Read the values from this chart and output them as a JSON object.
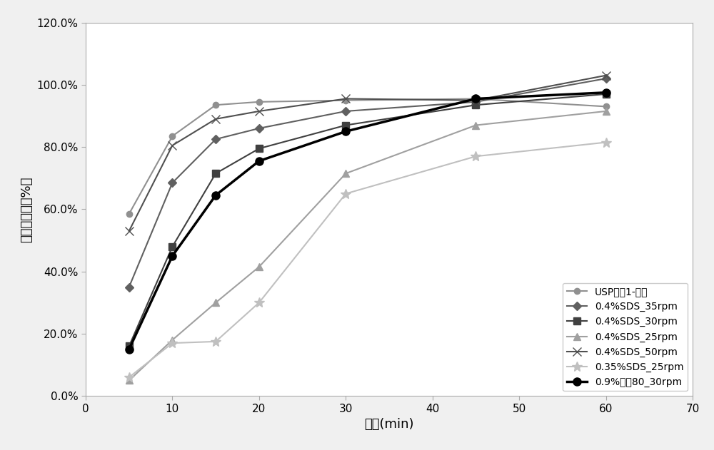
{
  "series": [
    {
      "label": "USP方法1-原研",
      "x": [
        5,
        10,
        15,
        20,
        30,
        45,
        60
      ],
      "y": [
        58.5,
        83.5,
        93.5,
        94.5,
        95.0,
        95.5,
        93.0
      ],
      "color": "#909090",
      "marker": "o",
      "markersize": 6,
      "linewidth": 1.5,
      "linestyle": "-",
      "markerfacecolor": "#909090"
    },
    {
      "label": "0.4%SDS_35rpm",
      "x": [
        5,
        10,
        15,
        20,
        30,
        45,
        60
      ],
      "y": [
        35.0,
        68.5,
        82.5,
        86.0,
        91.5,
        94.5,
        102.0
      ],
      "color": "#606060",
      "marker": "D",
      "markersize": 6,
      "linewidth": 1.5,
      "linestyle": "-",
      "markerfacecolor": "#606060"
    },
    {
      "label": "0.4%SDS_30rpm",
      "x": [
        5,
        10,
        15,
        20,
        30,
        45,
        60
      ],
      "y": [
        16.0,
        48.0,
        71.5,
        79.5,
        87.0,
        93.5,
        97.0
      ],
      "color": "#404040",
      "marker": "s",
      "markersize": 7,
      "linewidth": 1.5,
      "linestyle": "-",
      "markerfacecolor": "#404040"
    },
    {
      "label": "0.4%SDS_25rpm",
      "x": [
        5,
        10,
        15,
        20,
        30,
        45,
        60
      ],
      "y": [
        5.0,
        18.0,
        30.0,
        41.5,
        71.5,
        87.0,
        91.5
      ],
      "color": "#a0a0a0",
      "marker": "^",
      "markersize": 7,
      "linewidth": 1.5,
      "linestyle": "-",
      "markerfacecolor": "#a0a0a0"
    },
    {
      "label": "0.4%SDS_50rpm",
      "x": [
        5,
        10,
        15,
        20,
        30,
        45,
        60
      ],
      "y": [
        53.0,
        80.5,
        89.0,
        91.5,
        95.5,
        95.0,
        103.0
      ],
      "color": "#505050",
      "marker": "x",
      "markersize": 8,
      "linewidth": 1.5,
      "linestyle": "-",
      "markerfacecolor": "#505050"
    },
    {
      "label": "0.35%SDS_25rpm",
      "x": [
        5,
        10,
        15,
        20,
        30,
        45,
        60
      ],
      "y": [
        6.0,
        17.0,
        17.5,
        30.0,
        65.0,
        77.0,
        81.5
      ],
      "color": "#c0c0c0",
      "marker": "*",
      "markersize": 10,
      "linewidth": 1.5,
      "linestyle": "-",
      "markerfacecolor": "#c0c0c0"
    },
    {
      "label": "0.9%吐温80_30rpm",
      "x": [
        5,
        10,
        15,
        20,
        30,
        45,
        60
      ],
      "y": [
        15.0,
        45.0,
        64.5,
        75.5,
        85.0,
        95.5,
        97.5
      ],
      "color": "#000000",
      "marker": "o",
      "markersize": 8,
      "linewidth": 2.5,
      "linestyle": "-",
      "markerfacecolor": "#000000"
    }
  ],
  "xlabel": "时间(min)",
  "ylabel": "累积溶出度（%）",
  "xlim": [
    0,
    70
  ],
  "ylim": [
    0.0,
    120.0
  ],
  "yticks": [
    0.0,
    20.0,
    40.0,
    60.0,
    80.0,
    100.0,
    120.0
  ],
  "xticks": [
    0,
    10,
    20,
    30,
    40,
    50,
    60,
    70
  ],
  "background_color": "#f0f0f0",
  "plot_bg_color": "#ffffff",
  "legend_loc": "lower right",
  "grid": false
}
